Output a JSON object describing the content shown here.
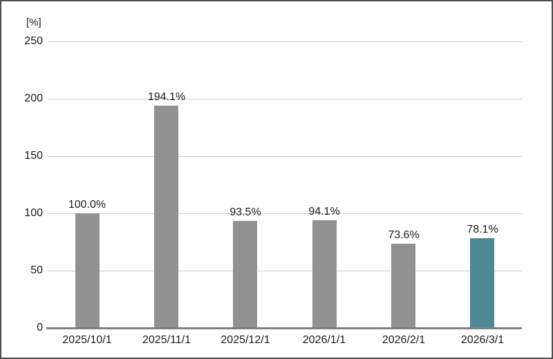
{
  "chart_data": {
    "type": "bar",
    "title": "",
    "xlabel": "",
    "ylabel": "[%]",
    "categories": [
      "2025/10/1",
      "2025/11/1",
      "2025/12/1",
      "2026/1/1",
      "2026/2/1",
      "2026/3/1"
    ],
    "values": [
      100.0,
      194.1,
      93.5,
      94.1,
      73.6,
      78.1
    ],
    "value_labels": [
      "100.0%",
      "194.1%",
      "93.5%",
      "94.1%",
      "73.6%",
      "78.1%"
    ],
    "ylim": [
      0,
      250
    ],
    "yticks": [
      0,
      50,
      100,
      150,
      200,
      250
    ],
    "grid": true,
    "legend": false,
    "highlight_index": 5,
    "colors": {
      "bar": "#919191",
      "highlight_bar": "#4d8893",
      "gridline": "#c8c8c8",
      "axis": "#808080",
      "border": "#4d4d4d",
      "text": "#1a1a1a"
    }
  }
}
